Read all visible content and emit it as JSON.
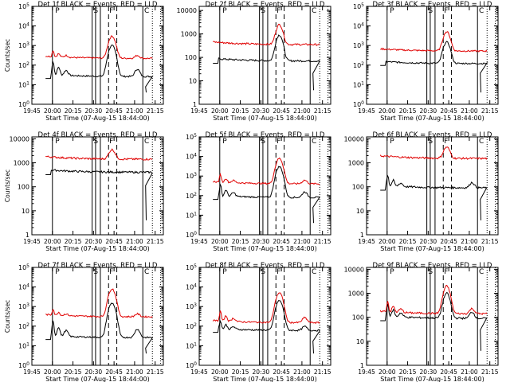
{
  "figure": {
    "xlabel": "Start Time (07-Aug-15 18:44:00)",
    "ylabel": "Counts/sec",
    "xtick_labels": [
      "19:45",
      "20:00",
      "20:15",
      "20:30",
      "20:45",
      "21:00",
      "21:15"
    ],
    "x_ticks_minutes": [
      0,
      15,
      30,
      45,
      60,
      75,
      90
    ],
    "x_range_minutes": [
      0,
      96
    ],
    "marker_letters": [
      "P",
      "S",
      "F",
      "C"
    ],
    "colors": {
      "events": "#000000",
      "lld": "#e00000",
      "axis": "#000000"
    }
  },
  "chart_data": [
    {
      "type": "line",
      "title": "Det 1f BLACK = Events, RED = LLD",
      "ylog": true,
      "ylim": [
        1,
        100000
      ],
      "ytick_labels": [
        "10^0",
        "10^1",
        "10^2",
        "10^3",
        "10^4",
        "10^5"
      ],
      "ylabel_shown": true,
      "series": [
        {
          "name": "Events",
          "peak": 1000,
          "smooth": 26,
          "spikes": 120
        },
        {
          "name": "LLD",
          "peak": 3000,
          "smooth": 220,
          "spikes": 300
        }
      ]
    },
    {
      "type": "line",
      "title": "Det 2f BLACK = Events, RED = LLD",
      "ylog": true,
      "ylim": [
        1,
        15000
      ],
      "ytick_labels": [
        "1",
        "10",
        "100",
        "1000",
        "10000"
      ],
      "ylabel_shown": false,
      "series": [
        {
          "name": "Events",
          "peak": 900,
          "smooth": 70,
          "spikes": 0
        },
        {
          "name": "LLD",
          "peak": 2500,
          "smooth": 350,
          "spikes": 0
        }
      ]
    },
    {
      "type": "line",
      "title": "Det 3f BLACK = Events, RED = LLD",
      "ylog": true,
      "ylim": [
        1,
        100000
      ],
      "ytick_labels": [
        "10^0",
        "10^1",
        "10^2",
        "10^3",
        "10^4",
        "10^5"
      ],
      "ylabel_shown": false,
      "series": [
        {
          "name": "Events",
          "peak": 1500,
          "smooth": 120,
          "spikes": 0
        },
        {
          "name": "LLD",
          "peak": 5000,
          "smooth": 520,
          "spikes": 0
        }
      ]
    },
    {
      "type": "line",
      "title": "Det 4f BLACK = Events, RED = LLD",
      "ylog": true,
      "ylim": [
        1,
        12000
      ],
      "ytick_labels": [
        "1",
        "10",
        "100",
        "1000",
        "10000"
      ],
      "ylabel_shown": true,
      "series": [
        {
          "name": "Events",
          "peak": 0,
          "smooth": 400,
          "spikes": 0
        },
        {
          "name": "LLD",
          "peak": 3500,
          "smooth": 1400,
          "spikes": 0
        }
      ]
    },
    {
      "type": "line",
      "title": "Det 5f BLACK = Events, RED = LLD",
      "ylog": true,
      "ylim": [
        1,
        100000
      ],
      "ytick_labels": [
        "10^0",
        "10^1",
        "10^2",
        "10^3",
        "10^4",
        "10^5"
      ],
      "ylabel_shown": false,
      "series": [
        {
          "name": "Events",
          "peak": 3000,
          "smooth": 80,
          "spikes": 250
        },
        {
          "name": "LLD",
          "peak": 8000,
          "smooth": 400,
          "spikes": 700
        }
      ]
    },
    {
      "type": "line",
      "title": "Det 6f BLACK = Events, RED = LLD",
      "ylog": true,
      "ylim": [
        1,
        12000
      ],
      "ytick_labels": [
        "1",
        "10",
        "100",
        "1000",
        "10000"
      ],
      "ylabel_shown": false,
      "series": [
        {
          "name": "Events",
          "peak": 0,
          "smooth": 90,
          "spikes": 200
        },
        {
          "name": "LLD",
          "peak": 4500,
          "smooth": 1500,
          "spikes": 0
        }
      ]
    },
    {
      "type": "line",
      "title": "Det 7f BLACK = Events, RED = LLD",
      "ylog": true,
      "ylim": [
        1,
        100000
      ],
      "ytick_labels": [
        "10^0",
        "10^1",
        "10^2",
        "10^3",
        "10^4",
        "10^5"
      ],
      "ylabel_shown": true,
      "series": [
        {
          "name": "Events",
          "peak": 1500,
          "smooth": 26,
          "spikes": 150
        },
        {
          "name": "LLD",
          "peak": 8000,
          "smooth": 300,
          "spikes": 400
        }
      ]
    },
    {
      "type": "line",
      "title": "Det 8f BLACK = Events, RED = LLD",
      "ylog": true,
      "ylim": [
        1,
        100000
      ],
      "ytick_labels": [
        "10^0",
        "10^1",
        "10^2",
        "10^3",
        "10^4",
        "10^5"
      ],
      "ylabel_shown": false,
      "series": [
        {
          "name": "Events",
          "peak": 2000,
          "smooth": 60,
          "spikes": 120
        },
        {
          "name": "LLD",
          "peak": 5000,
          "smooth": 150,
          "spikes": 400
        }
      ]
    },
    {
      "type": "line",
      "title": "Det 9f BLACK = Events, RED = LLD",
      "ylog": true,
      "ylim": [
        1,
        12000
      ],
      "ytick_labels": [
        "1",
        "10",
        "100",
        "1000",
        "10000"
      ],
      "ylabel_shown": false,
      "series": [
        {
          "name": "Events",
          "peak": 1000,
          "smooth": 90,
          "spikes": 250
        },
        {
          "name": "LLD",
          "peak": 2000,
          "smooth": 140,
          "spikes": 300
        }
      ]
    }
  ]
}
